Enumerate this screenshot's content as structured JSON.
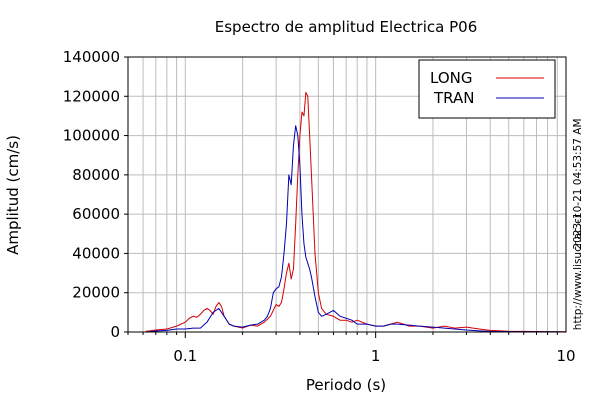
{
  "chart_data": {
    "type": "line",
    "title": "Espectro de amplitud Electrica P06",
    "xlabel": "Periodo (s)",
    "ylabel": "Amplitud (cm/s)",
    "x_scale": "log",
    "xlim": [
      0.05,
      10
    ],
    "ylim": [
      0,
      140000
    ],
    "x_ticks": [
      {
        "v": 0.1,
        "label": "0.1"
      },
      {
        "v": 1,
        "label": "1"
      },
      {
        "v": 10,
        "label": "10"
      }
    ],
    "y_ticks": [
      {
        "v": 0,
        "label": "0"
      },
      {
        "v": 20000,
        "label": "20000"
      },
      {
        "v": 40000,
        "label": "40000"
      },
      {
        "v": 60000,
        "label": "60000"
      },
      {
        "v": 80000,
        "label": "80000"
      },
      {
        "v": 100000,
        "label": "100000"
      },
      {
        "v": 120000,
        "label": "120000"
      },
      {
        "v": 140000,
        "label": "140000"
      }
    ],
    "grid": true,
    "legend_position": "top-right",
    "series": [
      {
        "name": "LONG",
        "color": "#d40000",
        "x": [
          0.062,
          0.07,
          0.08,
          0.09,
          0.1,
          0.105,
          0.11,
          0.115,
          0.12,
          0.125,
          0.13,
          0.135,
          0.14,
          0.145,
          0.15,
          0.155,
          0.16,
          0.17,
          0.18,
          0.2,
          0.22,
          0.24,
          0.26,
          0.28,
          0.3,
          0.31,
          0.32,
          0.33,
          0.34,
          0.35,
          0.36,
          0.37,
          0.38,
          0.39,
          0.4,
          0.41,
          0.42,
          0.43,
          0.44,
          0.45,
          0.46,
          0.47,
          0.48,
          0.5,
          0.52,
          0.55,
          0.6,
          0.65,
          0.7,
          0.75,
          0.8,
          0.9,
          1.0,
          1.1,
          1.2,
          1.3,
          1.4,
          1.5,
          1.7,
          2.0,
          2.3,
          2.6,
          3.0,
          3.5,
          4.0,
          5.0,
          6.0,
          8.0,
          10.0
        ],
        "y": [
          300,
          1000,
          1500,
          3000,
          5000,
          7000,
          8000,
          7500,
          9000,
          11000,
          12000,
          11000,
          9000,
          13000,
          15000,
          13000,
          8000,
          4000,
          3000,
          2000,
          3500,
          3000,
          5000,
          8000,
          14000,
          13000,
          15000,
          22000,
          30000,
          35000,
          27000,
          32000,
          55000,
          80000,
          100000,
          112000,
          110000,
          122000,
          120000,
          100000,
          80000,
          60000,
          40000,
          20000,
          12000,
          9000,
          8000,
          6000,
          6000,
          5000,
          6000,
          4000,
          3000,
          3000,
          4000,
          5000,
          4000,
          3000,
          3000,
          2000,
          3000,
          2000,
          2500,
          1500,
          800,
          400,
          300,
          200,
          100
        ]
      },
      {
        "name": "TRAN",
        "color": "#0000b4",
        "x": [
          0.065,
          0.07,
          0.08,
          0.09,
          0.1,
          0.11,
          0.12,
          0.13,
          0.14,
          0.15,
          0.16,
          0.17,
          0.18,
          0.2,
          0.22,
          0.24,
          0.26,
          0.27,
          0.28,
          0.29,
          0.3,
          0.31,
          0.32,
          0.33,
          0.34,
          0.35,
          0.36,
          0.37,
          0.38,
          0.39,
          0.4,
          0.41,
          0.42,
          0.43,
          0.44,
          0.45,
          0.46,
          0.48,
          0.5,
          0.52,
          0.55,
          0.6,
          0.65,
          0.7,
          0.75,
          0.8,
          0.9,
          1.0,
          1.1,
          1.2,
          1.3,
          1.5,
          1.7,
          2.0,
          2.3,
          2.6,
          3.0,
          3.5,
          4.0,
          5.0,
          6.0,
          8.0,
          10.0
        ],
        "y": [
          200,
          500,
          800,
          1500,
          1500,
          2000,
          2000,
          5000,
          10000,
          12000,
          8000,
          4000,
          3000,
          2500,
          3500,
          4000,
          6000,
          8000,
          12000,
          20000,
          22000,
          23000,
          28000,
          40000,
          55000,
          80000,
          75000,
          95000,
          105000,
          100000,
          85000,
          60000,
          45000,
          38000,
          35000,
          32000,
          28000,
          18000,
          10000,
          8000,
          9000,
          11000,
          8000,
          7000,
          6000,
          4000,
          4000,
          3000,
          3000,
          4000,
          4000,
          3500,
          3000,
          2500,
          2000,
          1500,
          1000,
          600,
          300,
          200,
          150,
          100,
          50
        ]
      }
    ]
  },
  "side_text": {
    "timestamp": "2023-10-21 04:53:57 AM",
    "url": "http://www.lisucr.ac.cr"
  }
}
